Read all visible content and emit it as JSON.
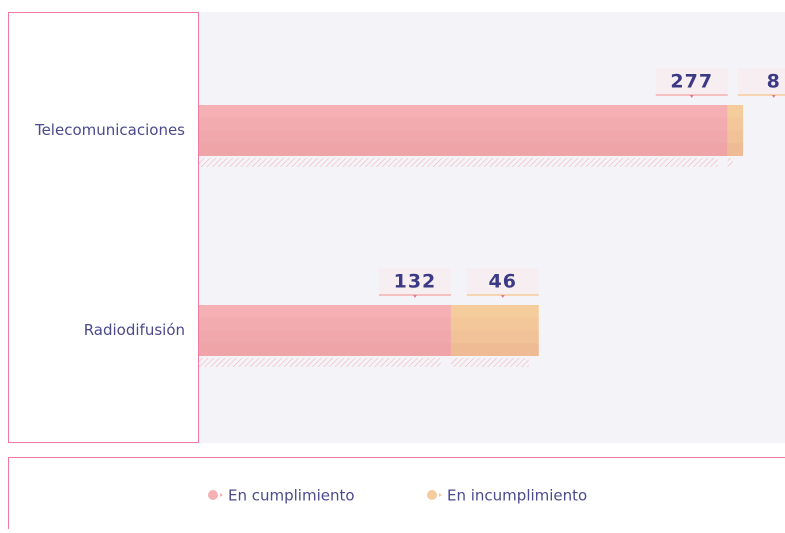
{
  "chart_data": {
    "type": "stacked-bar-horizontal",
    "categories": [
      "Telecomunicaciones",
      "Radiodifusión"
    ],
    "series": [
      {
        "name": "En cumplimiento",
        "color": "#f4b0b3",
        "values": [
          277,
          132
        ]
      },
      {
        "name": "En incumplimiento",
        "color": "#f5cc9c",
        "values": [
          8,
          46
        ]
      }
    ]
  }
}
